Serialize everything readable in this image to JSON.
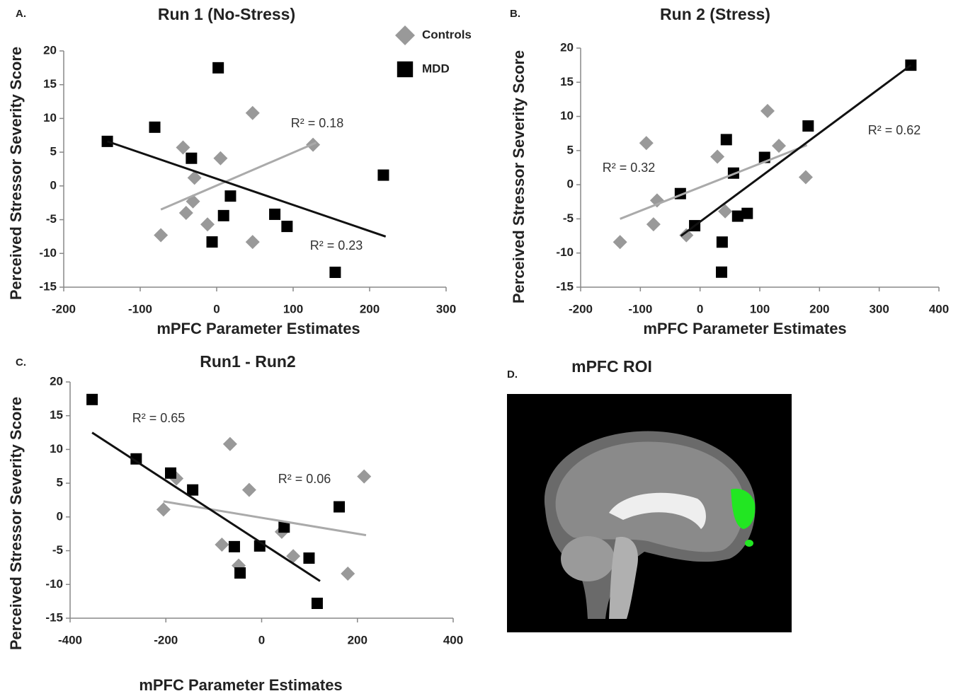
{
  "chart_data": [
    {
      "type": "scatter",
      "panel_label": "A.",
      "title": "Run 1 (No-Stress)",
      "xlabel": "mPFC Parameter Estimates",
      "ylabel": "Perceived Stressor Severity Score",
      "xlim": [
        -200,
        300
      ],
      "xticks": [
        -200,
        -100,
        0,
        100,
        200,
        300
      ],
      "ylim": [
        -15,
        20
      ],
      "yticks": [
        20,
        15,
        10,
        5,
        0,
        -5,
        -10,
        -15
      ],
      "legend": "top right",
      "series": [
        {
          "name": "Controls",
          "color": "#999999",
          "marker": "diamond",
          "x": [
            47,
            126,
            -44,
            5,
            -29,
            -31,
            -40,
            -12,
            -73,
            47
          ],
          "values": [
            10.8,
            6.1,
            5.7,
            4.1,
            1.2,
            -2.3,
            -4.0,
            -5.7,
            -7.3,
            -8.3
          ],
          "trendline": {
            "x": [
              -73,
              130
            ],
            "y": [
              -3.5,
              6.4
            ],
            "color": "#aaaaaa",
            "label": "R² = 0.18"
          }
        },
        {
          "name": "MDD",
          "color": "#000000",
          "marker": "square",
          "x": [
            2,
            -81,
            -143,
            -33,
            218,
            18,
            9,
            76,
            92,
            -6,
            155
          ],
          "values": [
            17.5,
            8.7,
            6.6,
            4.1,
            1.6,
            -1.5,
            -4.4,
            -4.2,
            -6.0,
            -8.3,
            -12.8
          ],
          "trendline": {
            "x": [
              -143,
              221
            ],
            "y": [
              6.6,
              -7.5
            ],
            "color": "#111111",
            "label": "R² = 0.23"
          }
        }
      ]
    },
    {
      "type": "scatter",
      "panel_label": "B.",
      "title": "Run 2 (Stress)",
      "xlabel": "mPFC Parameter Estimates",
      "ylabel": "Perceived Stressor Severity Score",
      "xlim": [
        -200,
        400
      ],
      "xticks": [
        -200,
        -100,
        0,
        100,
        200,
        300,
        400
      ],
      "ylim": [
        -15,
        20
      ],
      "yticks": [
        20,
        15,
        10,
        5,
        0,
        -5,
        -10,
        -15
      ],
      "series": [
        {
          "name": "Controls",
          "color": "#999999",
          "marker": "diamond",
          "x": [
            -90,
            113,
            29,
            132,
            177,
            -72,
            42,
            -78,
            -23,
            -134
          ],
          "values": [
            6.1,
            10.8,
            4.1,
            5.7,
            1.1,
            -2.3,
            -3.9,
            -5.8,
            -7.4,
            -8.4
          ],
          "trendline": {
            "x": [
              -134,
              179
            ],
            "y": [
              -5.0,
              5.8
            ],
            "color": "#aaaaaa",
            "label": "R² = 0.32"
          }
        },
        {
          "name": "MDD",
          "color": "#000000",
          "marker": "square",
          "x": [
            353,
            181,
            44,
            108,
            56,
            -33,
            63,
            79,
            -9,
            37,
            36
          ],
          "values": [
            17.5,
            8.6,
            6.6,
            4.0,
            1.7,
            -1.3,
            -4.6,
            -4.2,
            -6.0,
            -8.4,
            -12.8
          ],
          "trendline": {
            "x": [
              -32,
              353
            ],
            "y": [
              -7.5,
              17.5
            ],
            "color": "#111111",
            "label": "R² = 0.62"
          }
        }
      ]
    },
    {
      "type": "scatter",
      "panel_label": "C.",
      "title": "Run1 - Run2",
      "xlabel": "mPFC Parameter Estimates",
      "ylabel": "Perceived Stressor Severity Score",
      "xlim": [
        -400,
        400
      ],
      "xticks": [
        -400,
        -200,
        0,
        200,
        400
      ],
      "ylim": [
        -15,
        20
      ],
      "yticks": [
        20,
        15,
        10,
        5,
        0,
        -5,
        -10,
        -15
      ],
      "series": [
        {
          "name": "Controls",
          "color": "#999999",
          "marker": "diamond",
          "x": [
            -66,
            -26,
            214,
            -178,
            -205,
            -83,
            42,
            66,
            -48,
            180
          ],
          "values": [
            10.8,
            4.0,
            6.0,
            5.7,
            1.1,
            -4.1,
            -2.2,
            -5.8,
            -7.2,
            -8.4
          ],
          "trendline": {
            "x": [
              -205,
              218
            ],
            "y": [
              2.3,
              -2.7
            ],
            "color": "#aaaaaa",
            "label": "R² = 0.06"
          }
        },
        {
          "name": "MDD",
          "color": "#000000",
          "marker": "square",
          "x": [
            -354,
            -262,
            -190,
            -144,
            162,
            47,
            -57,
            -4,
            99,
            -45,
            116
          ],
          "values": [
            17.4,
            8.6,
            6.5,
            4.0,
            1.5,
            -1.5,
            -4.4,
            -4.3,
            -6.1,
            -8.3,
            -12.8
          ],
          "trendline": {
            "x": [
              -354,
              122
            ],
            "y": [
              12.5,
              -9.5
            ],
            "color": "#111111",
            "label": "R² = 0.65"
          }
        }
      ]
    }
  ],
  "panel_d": {
    "label": "D.",
    "title": "mPFC ROI"
  }
}
